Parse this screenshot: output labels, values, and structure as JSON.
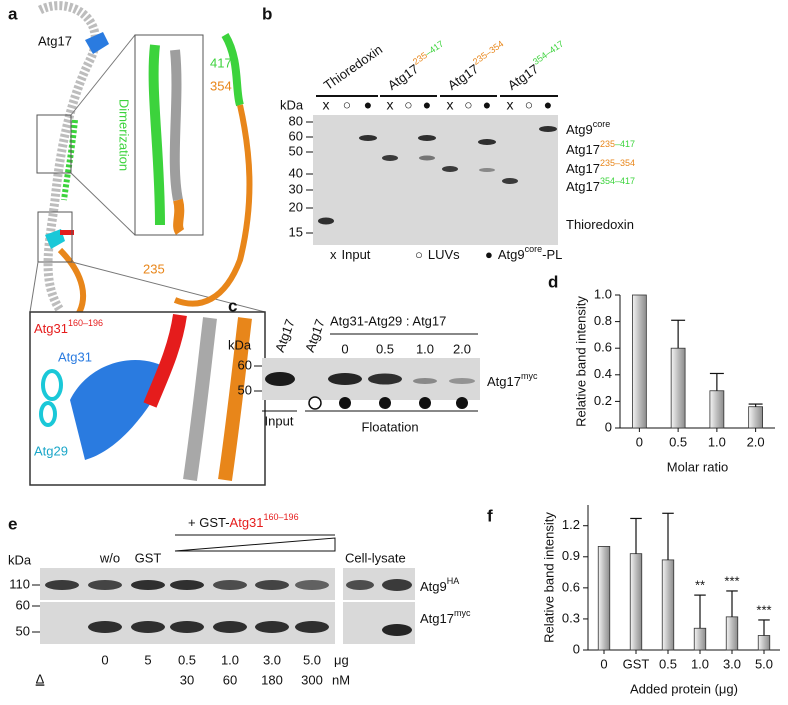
{
  "panel_a": {
    "letter": "a",
    "label": "Atg17",
    "dimerization": "Dimerization",
    "res_417": "417",
    "res_354": "354",
    "res_235": "235",
    "inset": {
      "atg31": "Atg31",
      "atg31_range": "160–196",
      "atg31_chain": "Atg31",
      "atg29": "Atg29"
    }
  },
  "panel_b": {
    "letter": "b",
    "lanes": [
      {
        "name": "Thioredoxin"
      },
      {
        "name": "Atg17",
        "range": [
          "235",
          "–417"
        ]
      },
      {
        "name": "Atg17",
        "range": [
          "235",
          "–354"
        ]
      },
      {
        "name": "Atg17",
        "range": [
          "354",
          "–417"
        ]
      }
    ],
    "conditions": [
      "x",
      "○",
      "●"
    ],
    "kda": "kDa",
    "markers": [
      "80",
      "60",
      "50",
      "40",
      "30",
      "20",
      "15"
    ],
    "bands": [
      {
        "name": "Atg9",
        "sup": "core"
      },
      {
        "name": "Atg17",
        "range": [
          "235",
          "–417"
        ]
      },
      {
        "name": "Atg17",
        "range": [
          "235",
          "–354"
        ]
      },
      {
        "name": "Atg17",
        "range": [
          "354",
          "–417"
        ]
      },
      {
        "name": "Thioredoxin"
      }
    ],
    "legend": [
      {
        "symbol": "x",
        "text": "Input"
      },
      {
        "symbol": "○",
        "text": "LUVs"
      },
      {
        "symbol": "●",
        "text": "Atg9",
        "sup": "core",
        "suffix": "-PL"
      }
    ]
  },
  "panel_c": {
    "letter": "c",
    "kda": "kDa",
    "markers": [
      "60",
      "50"
    ],
    "lanes": [
      "Atg17",
      "Atg17"
    ],
    "ratio_title": "Atg31-Atg29 : Atg17",
    "ratios": [
      "0",
      "0.5",
      "1.0",
      "2.0"
    ],
    "band": {
      "name": "Atg17",
      "sup": "myc"
    },
    "input": "Input",
    "floatation": "Floatation"
  },
  "panel_d": {
    "letter": "d",
    "type": "bar",
    "ylabel": "Relative band intensity",
    "xlabel": "Molar ratio",
    "categories": [
      "0",
      "0.5",
      "1.0",
      "2.0"
    ],
    "values": [
      1.0,
      0.6,
      0.28,
      0.16
    ],
    "errors": [
      0,
      0.21,
      0.13,
      0.02
    ],
    "ylim": [
      0,
      1.0
    ],
    "yticks": [
      0,
      0.2,
      0.4,
      0.6,
      0.8,
      {
        "value": 1.0,
        "label": "1.0"
      }
    ]
  },
  "panel_e": {
    "letter": "e",
    "kda": "kDa",
    "markers": [
      "110",
      "60",
      "50"
    ],
    "treatment": "+ GST-",
    "treatment_red": "Atg31",
    "treatment_sup": "160–196",
    "lanes": [
      "w/o",
      "GST"
    ],
    "cell_lysate": "Cell-lysate",
    "bands": [
      {
        "name": "Atg9",
        "sup": "HA"
      },
      {
        "name": "Atg17",
        "sup": "myc"
      }
    ],
    "amounts": [
      "0",
      "5",
      "0.5",
      "1.0",
      "3.0",
      "5.0"
    ],
    "amount_unit": "μg",
    "nm": [
      "30",
      "60",
      "180",
      "300"
    ],
    "nm_unit": "nM",
    "delta": "Δ"
  },
  "panel_f": {
    "letter": "f",
    "type": "bar",
    "ylabel": "Relative band intensity",
    "xlabel": "Added protein (μg)",
    "categories": [
      "0",
      "GST",
      "0.5",
      "1.0",
      "3.0",
      "5.0"
    ],
    "values": [
      1.0,
      0.93,
      0.87,
      0.21,
      0.32,
      0.14
    ],
    "errors": [
      0,
      0.34,
      0.45,
      0.32,
      0.25,
      0.15
    ],
    "stars": [
      null,
      null,
      null,
      "**",
      "***",
      "***"
    ],
    "ylim": [
      0,
      1.4
    ],
    "yticks": [
      0,
      0.3,
      0.6,
      0.9,
      1.2
    ]
  }
}
